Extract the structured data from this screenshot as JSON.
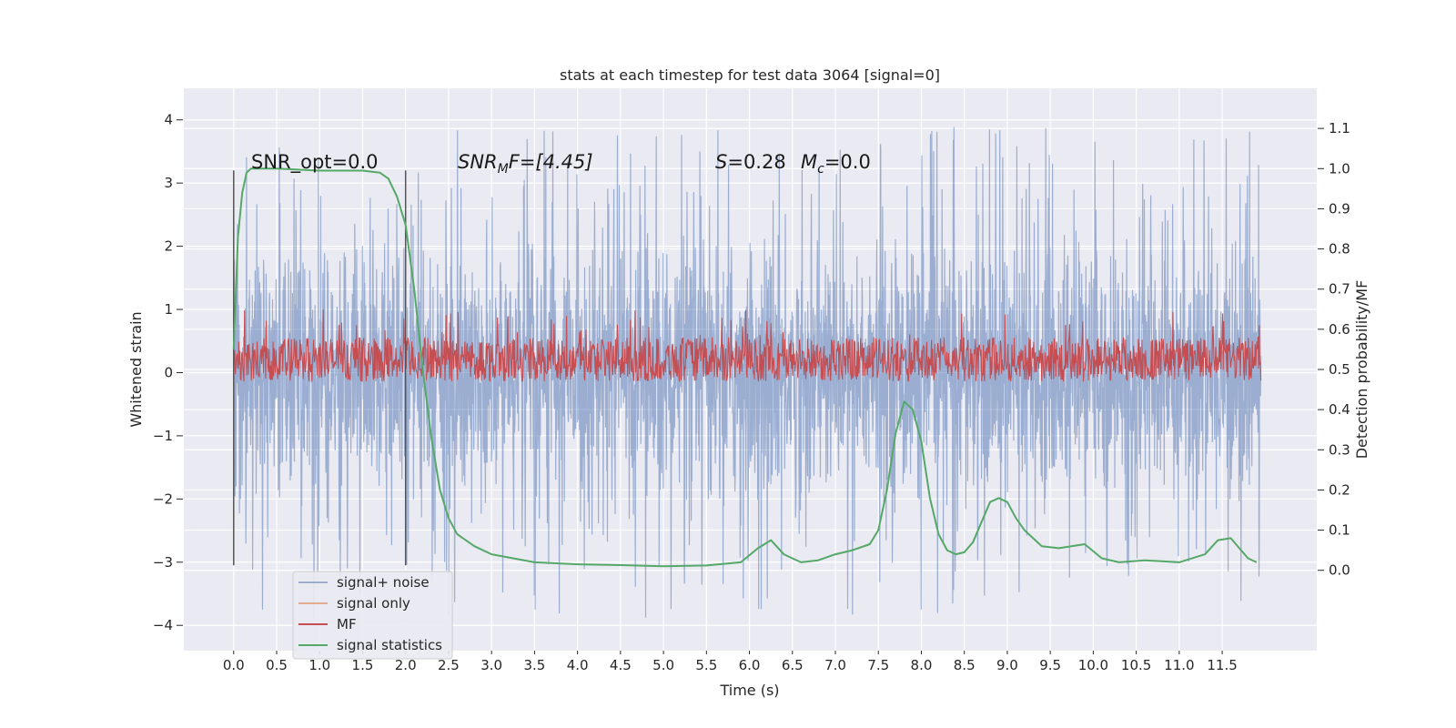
{
  "chart_data": {
    "type": "line",
    "title": "stats at each timestep for test data 3064 [signal=0]",
    "xlabel": "Time (s)",
    "ylabel": "Whitened strain",
    "y2label": "Detection probability/MF",
    "xlim": [
      -0.58,
      12.6
    ],
    "ylim": [
      -4.4,
      4.5
    ],
    "y2lim": [
      -0.2,
      1.2
    ],
    "x_ticks": [
      0.0,
      0.5,
      1.0,
      1.5,
      2.0,
      2.5,
      3.0,
      3.5,
      4.0,
      4.5,
      5.0,
      5.5,
      6.0,
      6.5,
      7.0,
      7.5,
      8.0,
      8.5,
      9.0,
      9.5,
      10.0,
      10.5,
      11.0,
      11.5
    ],
    "x_tick_labels": [
      "0.0",
      "0.5",
      "1.0",
      "1.5",
      "2.0",
      "2.5",
      "3.0",
      "3.5",
      "4.0",
      "4.5",
      "5.0",
      "5.5",
      "6.0",
      "6.5",
      "7.0",
      "7.5",
      "8.0",
      "8.5",
      "9.0",
      "9.5",
      "10.0",
      "10.5",
      "11.0",
      "11.5"
    ],
    "y_ticks": [
      -4,
      -3,
      -2,
      -1,
      0,
      1,
      2,
      3,
      4
    ],
    "y_tick_labels": [
      "−4",
      "−3",
      "−2",
      "−1",
      "0",
      "1",
      "2",
      "3",
      "4"
    ],
    "y2_ticks": [
      0.0,
      0.1,
      0.2,
      0.3,
      0.4,
      0.5,
      0.6,
      0.7,
      0.8,
      0.9,
      1.0,
      1.1
    ],
    "y2_tick_labels": [
      "0.0",
      "0.1",
      "0.2",
      "0.3",
      "0.4",
      "0.5",
      "0.6",
      "0.7",
      "0.8",
      "0.9",
      "1.0",
      "1.1"
    ],
    "grid": true,
    "legend_position": "lower-left",
    "annotations": {
      "snr_opt": "SNR_opt=0.0",
      "snr_mf_prefix": "SNR",
      "snr_mf_sub": "M",
      "snr_mf_suffix": "F=[4.45]",
      "s_label": "S",
      "s_value": "=0.28",
      "mc_label": "M",
      "mc_sub": "c",
      "mc_value": "=0.0"
    },
    "window_markers": {
      "x": [
        0.0,
        2.0
      ],
      "y_range": [
        -3.05,
        3.2
      ]
    },
    "series": [
      {
        "name": "signal+ noise",
        "color": "#4c72b0",
        "axis": "left",
        "style": "dense noise",
        "x_range": [
          0.0,
          11.95
        ],
        "core_range": [
          -1.1,
          1.3
        ],
        "peak_range": [
          -3.9,
          4.1
        ]
      },
      {
        "name": "signal only",
        "color": "#dd8452",
        "axis": "left",
        "x": [],
        "y": []
      },
      {
        "name": "MF",
        "color": "#c44e52",
        "axis": "right",
        "style": "dense noise",
        "x_range": [
          0.0,
          11.95
        ],
        "band": [
          0.47,
          0.58
        ],
        "peak_max": 0.65
      },
      {
        "name": "signal statistics",
        "color": "#55a868",
        "axis": "right",
        "x": [
          0.0,
          0.05,
          0.1,
          0.15,
          0.2,
          0.3,
          0.5,
          1.0,
          1.5,
          1.7,
          1.8,
          1.9,
          2.0,
          2.1,
          2.2,
          2.3,
          2.4,
          2.5,
          2.6,
          2.8,
          3.0,
          3.5,
          4.0,
          4.5,
          5.0,
          5.5,
          5.9,
          6.1,
          6.25,
          6.4,
          6.6,
          6.8,
          7.0,
          7.2,
          7.4,
          7.5,
          7.6,
          7.7,
          7.8,
          7.9,
          8.0,
          8.1,
          8.2,
          8.3,
          8.4,
          8.5,
          8.6,
          8.7,
          8.8,
          8.9,
          9.0,
          9.1,
          9.2,
          9.4,
          9.6,
          9.9,
          10.1,
          10.3,
          10.6,
          11.0,
          11.3,
          11.45,
          11.6,
          11.8,
          11.9
        ],
        "y": [
          0.55,
          0.83,
          0.94,
          0.99,
          1.0,
          1.0,
          1.0,
          0.995,
          0.995,
          0.99,
          0.975,
          0.93,
          0.86,
          0.7,
          0.5,
          0.33,
          0.2,
          0.13,
          0.09,
          0.06,
          0.04,
          0.02,
          0.015,
          0.013,
          0.01,
          0.012,
          0.02,
          0.055,
          0.075,
          0.04,
          0.02,
          0.025,
          0.04,
          0.05,
          0.065,
          0.1,
          0.2,
          0.34,
          0.42,
          0.4,
          0.32,
          0.18,
          0.09,
          0.05,
          0.04,
          0.045,
          0.07,
          0.12,
          0.17,
          0.18,
          0.17,
          0.13,
          0.1,
          0.06,
          0.055,
          0.065,
          0.03,
          0.02,
          0.025,
          0.02,
          0.04,
          0.075,
          0.08,
          0.03,
          0.02
        ]
      }
    ]
  }
}
